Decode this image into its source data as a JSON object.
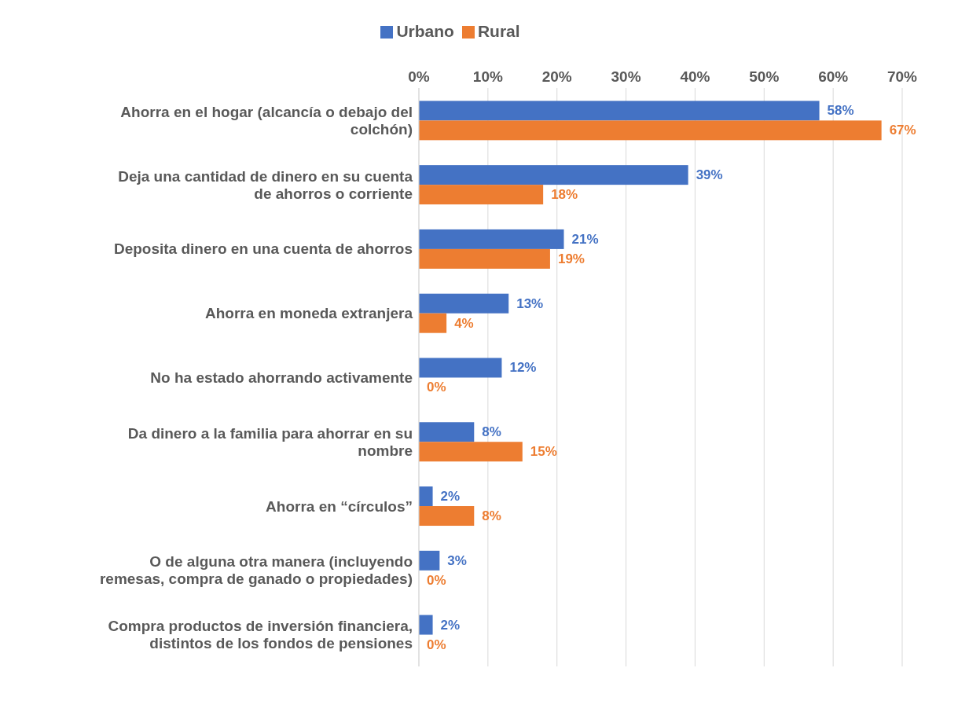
{
  "chart_data": {
    "type": "bar",
    "orientation": "horizontal",
    "categories": [
      "Ahorra en el hogar (alcancía o debajo del colchón)",
      "Deja una cantidad de dinero en su cuenta de ahorros o corriente",
      "Deposita dinero en una cuenta de ahorros",
      "Ahorra en moneda extranjera",
      "No ha estado ahorrando activamente",
      "Da dinero a la familia para ahorrar en su nombre",
      "Ahorra en “círculos”",
      "O de alguna otra manera (incluyendo remesas, compra de ganado o propiedades)",
      "Compra productos de inversión financiera, distintos de los fondos de pensiones"
    ],
    "series": [
      {
        "name": "Urbano",
        "color": "#4472c4",
        "values": [
          58,
          39,
          21,
          13,
          12,
          8,
          2,
          3,
          2
        ],
        "value_labels": [
          "58%",
          "39%",
          "21%",
          "13%",
          "12%",
          "8%",
          "2%",
          "3%",
          "2%"
        ]
      },
      {
        "name": "Rural",
        "color": "#ed7d31",
        "values": [
          67,
          18,
          19,
          4,
          0,
          15,
          8,
          0,
          0
        ],
        "value_labels": [
          "67%",
          "18%",
          "19%",
          "4%",
          "0%",
          "15%",
          "8%",
          "0%",
          "0%"
        ]
      }
    ],
    "xlim": [
      0,
      70
    ],
    "xticks": [
      {
        "value": 0,
        "label": "0%"
      },
      {
        "value": 10,
        "label": "10%"
      },
      {
        "value": 20,
        "label": "20%"
      },
      {
        "value": 30,
        "label": "30%"
      },
      {
        "value": 40,
        "label": "40%"
      },
      {
        "value": 50,
        "label": "50%"
      },
      {
        "value": 60,
        "label": "60%"
      },
      {
        "value": 70,
        "label": "70%"
      }
    ],
    "grid": "x",
    "legend": "top"
  }
}
